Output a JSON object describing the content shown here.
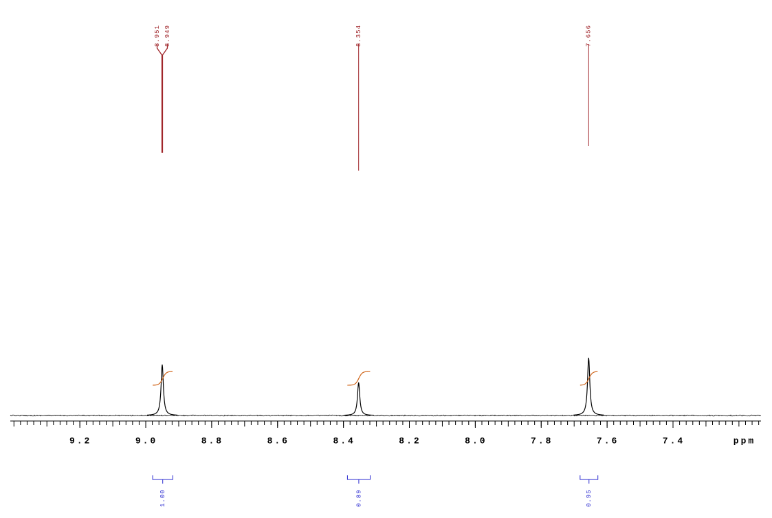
{
  "chart_data": {
    "type": "nmr",
    "x_label": "ppm",
    "xlim": [
      9.411,
      7.133
    ],
    "xticks": [
      9.2,
      {
        "value": 9,
        "label": "9.0"
      },
      8.8,
      8.6,
      8.4,
      8.2,
      {
        "value": 8,
        "label": "8.0"
      },
      7.8,
      7.6,
      7.4
    ],
    "minor_tick_step": 0.02,
    "ylim": [
      0,
      100
    ],
    "color": "#000000",
    "peaks": {
      "x": [
        8.95,
        8.354,
        7.656
      ],
      "values": [
        74,
        48,
        84
      ]
    },
    "peak_labels": [
      8.951,
      8.949,
      8.354,
      7.656
    ],
    "peak_label_color": "#a0262b",
    "integrals": {
      "ranges": [
        [
          8.979,
          8.918
        ],
        [
          8.388,
          8.319
        ],
        [
          7.682,
          7.628
        ]
      ],
      "values": [
        1,
        0.89,
        0.95
      ],
      "value_labels": [
        "1.00",
        "0.89",
        "0.95"
      ]
    },
    "integral_color": "#2a2ad0",
    "integral_curve_color": "#d0651a"
  }
}
